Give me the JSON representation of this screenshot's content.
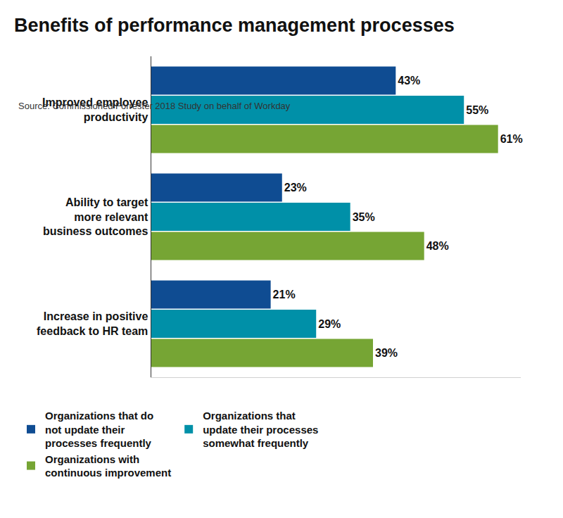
{
  "chart_data": {
    "type": "bar",
    "orientation": "horizontal",
    "title": "Benefits of performance management processes",
    "annotations": [
      "Source: Commissioned Forrester 2018 Study on behalf of Workday"
    ],
    "categories": [
      "Improved employee productivity",
      "Ability to target more relevant business outcomes",
      "Increase in positive feedback to HR team"
    ],
    "series": [
      {
        "name": "Organizations that do not update their processes frequently",
        "color": "#0f4c92",
        "values": [
          43,
          23,
          21
        ],
        "value_labels": [
          "43%",
          "23%",
          "21%"
        ]
      },
      {
        "name": "Organizations that update their processes somewhat frequently",
        "color": "#0090a8",
        "values": [
          55,
          35,
          29
        ],
        "value_labels": [
          "55%",
          "35%",
          "29%"
        ]
      },
      {
        "name": "Organizations with continuous improvement",
        "color": "#76a534",
        "values": [
          61,
          48,
          39
        ],
        "value_labels": [
          "61%",
          "48%",
          "39%"
        ]
      }
    ],
    "xlim": [
      0,
      65
    ],
    "xticks": [],
    "grid": false,
    "legend": "bottom",
    "data_labels": true,
    "tick_labels": "y"
  }
}
